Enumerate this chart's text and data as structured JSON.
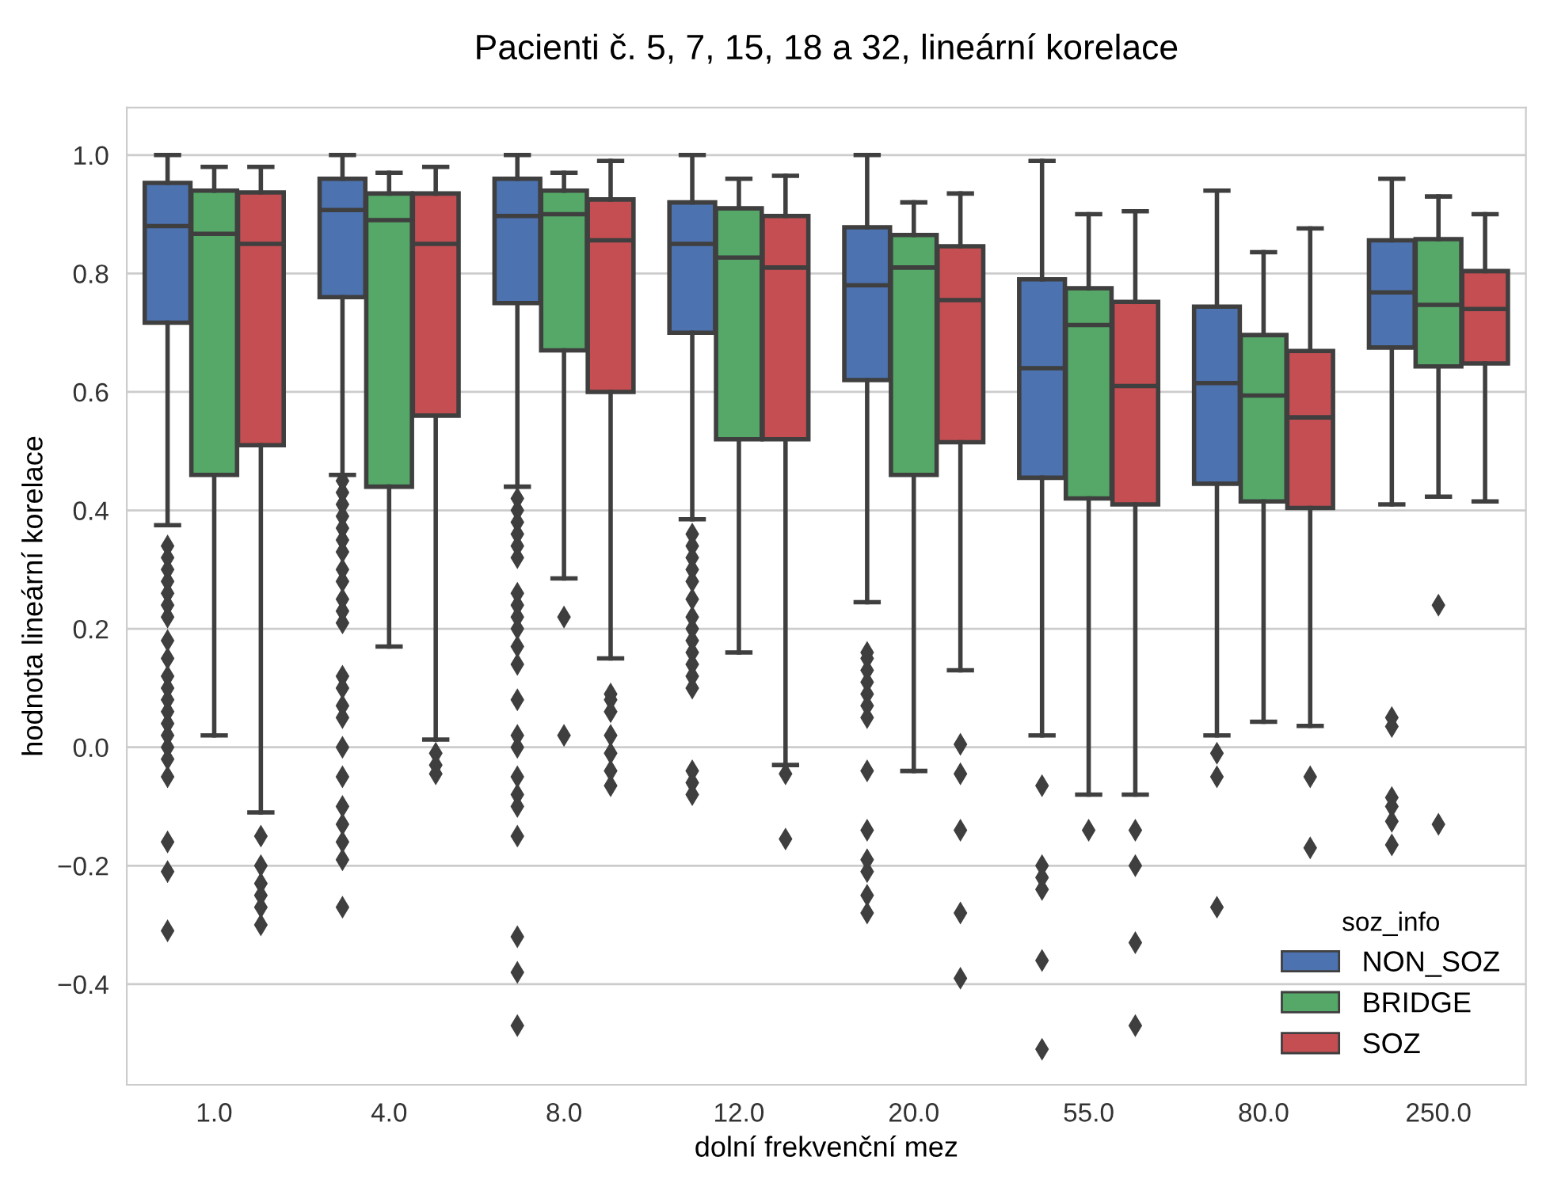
{
  "chart_data": {
    "type": "box",
    "title": "Pacienti č. 5, 7, 15, 18 a 32, lineární korelace",
    "xlabel": "dolní frekvenční mez",
    "ylabel": "hodnota lineární korelace",
    "legend_title": "soz_info",
    "legend": "bottom right",
    "grid": "y",
    "marker": "diamond",
    "categories": [
      "1.0",
      "4.0",
      "8.0",
      "12.0",
      "20.0",
      "55.0",
      "80.0",
      "250.0"
    ],
    "ylim": [
      -0.57,
      1.08
    ],
    "yticks": [
      {
        "value": -0.4,
        "label": "−0.4"
      },
      {
        "value": -0.2,
        "label": "−0.2"
      },
      {
        "value": 0.0,
        "label": "0.0"
      },
      {
        "value": 0.2,
        "label": "0.2"
      },
      {
        "value": 0.4,
        "label": "0.4"
      },
      {
        "value": 0.6,
        "label": "0.6"
      },
      {
        "value": 0.8,
        "label": "0.8"
      },
      {
        "value": 1.0,
        "label": "1.0"
      }
    ],
    "series": [
      {
        "name": "NON_SOZ",
        "color": "#4c72b0",
        "boxes": [
          {
            "low": 0.375,
            "q1": 0.717,
            "median": 0.88,
            "q3": 0.953,
            "high": 1.0,
            "outliers": [
              0.34,
              0.32,
              0.3,
              0.28,
              0.26,
              0.24,
              0.22,
              0.18,
              0.15,
              0.12,
              0.1,
              0.08,
              0.06,
              0.04,
              0.02,
              0.0,
              -0.02,
              -0.05,
              -0.16,
              -0.21,
              -0.31
            ]
          },
          {
            "low": 0.46,
            "q1": 0.76,
            "median": 0.907,
            "q3": 0.96,
            "high": 1.0,
            "outliers": [
              0.45,
              0.43,
              0.41,
              0.39,
              0.37,
              0.35,
              0.33,
              0.3,
              0.28,
              0.25,
              0.23,
              0.21,
              0.12,
              0.1,
              0.07,
              0.05,
              0.0,
              -0.05,
              -0.1,
              -0.13,
              -0.16,
              -0.19,
              -0.27
            ]
          },
          {
            "low": 0.44,
            "q1": 0.75,
            "median": 0.897,
            "q3": 0.96,
            "high": 1.0,
            "outliers": [
              0.42,
              0.4,
              0.38,
              0.36,
              0.34,
              0.32,
              0.26,
              0.24,
              0.22,
              0.2,
              0.17,
              0.14,
              0.08,
              0.02,
              0.0,
              -0.05,
              -0.08,
              -0.1,
              -0.15,
              -0.32,
              -0.38,
              -0.47
            ]
          },
          {
            "low": 0.385,
            "q1": 0.7,
            "median": 0.85,
            "q3": 0.92,
            "high": 1.0,
            "outliers": [
              0.36,
              0.34,
              0.32,
              0.3,
              0.28,
              0.25,
              0.22,
              0.2,
              0.18,
              0.16,
              0.14,
              0.12,
              0.1,
              -0.04,
              -0.06,
              -0.08
            ]
          },
          {
            "low": 0.245,
            "q1": 0.62,
            "median": 0.78,
            "q3": 0.878,
            "high": 1.0,
            "outliers": [
              0.16,
              0.15,
              0.13,
              0.11,
              0.09,
              0.07,
              0.05,
              -0.04,
              -0.14,
              -0.19,
              -0.21,
              -0.25,
              -0.28
            ]
          },
          {
            "low": 0.02,
            "q1": 0.455,
            "median": 0.64,
            "q3": 0.79,
            "high": 0.99,
            "outliers": [
              -0.065,
              -0.2,
              -0.22,
              -0.24,
              -0.36,
              -0.51
            ]
          },
          {
            "low": 0.02,
            "q1": 0.445,
            "median": 0.615,
            "q3": 0.744,
            "high": 0.94,
            "outliers": [
              -0.01,
              -0.05,
              -0.27
            ]
          },
          {
            "low": 0.41,
            "q1": 0.675,
            "median": 0.768,
            "q3": 0.856,
            "high": 0.96,
            "outliers": [
              0.05,
              0.035,
              -0.085,
              -0.1,
              -0.125,
              -0.165
            ]
          }
        ]
      },
      {
        "name": "BRIDGE",
        "color": "#55a868",
        "boxes": [
          {
            "low": 0.02,
            "q1": 0.46,
            "median": 0.867,
            "q3": 0.94,
            "high": 0.98
          },
          {
            "low": 0.17,
            "q1": 0.44,
            "median": 0.89,
            "q3": 0.935,
            "high": 0.97
          },
          {
            "low": 0.285,
            "q1": 0.67,
            "median": 0.9,
            "q3": 0.94,
            "high": 0.97,
            "outliers": [
              0.22,
              0.02
            ]
          },
          {
            "low": 0.16,
            "q1": 0.52,
            "median": 0.827,
            "q3": 0.91,
            "high": 0.96
          },
          {
            "low": -0.04,
            "q1": 0.46,
            "median": 0.81,
            "q3": 0.865,
            "high": 0.92
          },
          {
            "low": -0.08,
            "q1": 0.42,
            "median": 0.713,
            "q3": 0.775,
            "high": 0.9,
            "outliers": [
              -0.14
            ]
          },
          {
            "low": 0.043,
            "q1": 0.415,
            "median": 0.594,
            "q3": 0.696,
            "high": 0.836
          },
          {
            "low": 0.423,
            "q1": 0.643,
            "median": 0.747,
            "q3": 0.858,
            "high": 0.93,
            "outliers": [
              0.24,
              -0.13
            ]
          }
        ]
      },
      {
        "name": "SOZ",
        "color": "#c44e52",
        "boxes": [
          {
            "low": -0.11,
            "q1": 0.51,
            "median": 0.85,
            "q3": 0.937,
            "high": 0.98,
            "outliers": [
              -0.15,
              -0.2,
              -0.23,
              -0.25,
              -0.27,
              -0.3
            ]
          },
          {
            "low": 0.013,
            "q1": 0.56,
            "median": 0.85,
            "q3": 0.935,
            "high": 0.98,
            "outliers": [
              -0.01,
              -0.03,
              -0.045
            ]
          },
          {
            "low": 0.15,
            "q1": 0.6,
            "median": 0.856,
            "q3": 0.925,
            "high": 0.99,
            "outliers": [
              0.09,
              0.08,
              0.06,
              0.02,
              -0.01,
              -0.04,
              -0.065
            ]
          },
          {
            "low": -0.03,
            "q1": 0.52,
            "median": 0.81,
            "q3": 0.897,
            "high": 0.965,
            "outliers": [
              -0.045,
              -0.155
            ]
          },
          {
            "low": 0.13,
            "q1": 0.515,
            "median": 0.755,
            "q3": 0.846,
            "high": 0.935,
            "outliers": [
              0.005,
              -0.045,
              -0.14,
              -0.28,
              -0.39
            ]
          },
          {
            "low": -0.08,
            "q1": 0.41,
            "median": 0.61,
            "q3": 0.752,
            "high": 0.905,
            "outliers": [
              -0.14,
              -0.2,
              -0.33,
              -0.47
            ]
          },
          {
            "low": 0.036,
            "q1": 0.404,
            "median": 0.557,
            "q3": 0.669,
            "high": 0.876,
            "outliers": [
              -0.05,
              -0.17
            ]
          },
          {
            "low": 0.415,
            "q1": 0.648,
            "median": 0.74,
            "q3": 0.804,
            "high": 0.9
          }
        ]
      }
    ]
  }
}
